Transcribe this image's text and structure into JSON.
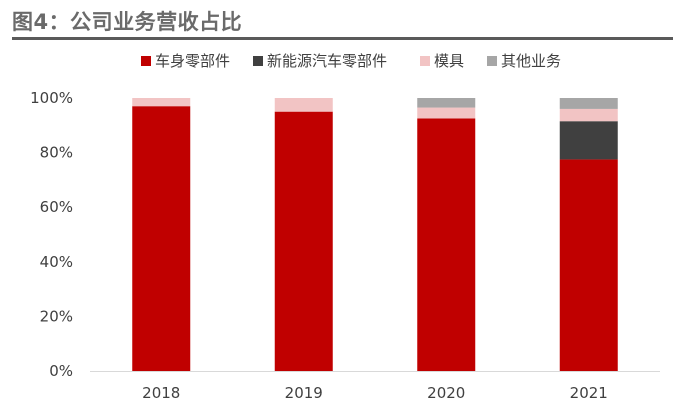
{
  "title": "图4：公司业务营收占比",
  "chart_data": {
    "type": "bar",
    "stacked": true,
    "categories": [
      "2018",
      "2019",
      "2020",
      "2021"
    ],
    "series": [
      {
        "name": "车身零部件",
        "color": "#c00000",
        "values": [
          97,
          95,
          92.5,
          77.5
        ]
      },
      {
        "name": "新能源汽车零部件",
        "color": "#404040",
        "values": [
          0,
          0,
          0,
          14
        ]
      },
      {
        "name": "模具",
        "color": "#f2c4c4",
        "values": [
          3,
          5,
          4,
          4.5
        ]
      },
      {
        "name": "其他业务",
        "color": "#a6a6a6",
        "values": [
          0,
          0,
          3.5,
          4
        ]
      }
    ],
    "yticks": [
      "0%",
      "20%",
      "40%",
      "60%",
      "80%",
      "100%"
    ],
    "ylim": [
      0,
      100
    ],
    "grid": false,
    "legend_position": "top"
  }
}
